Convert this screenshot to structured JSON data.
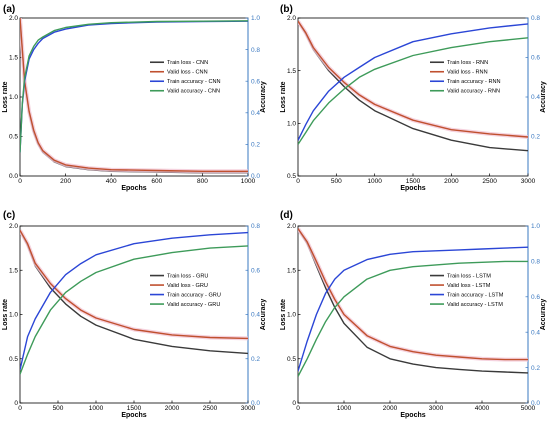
{
  "figure": {
    "colors": {
      "train_loss": "#3a3a3a",
      "valid_loss": "#c0502f",
      "train_acc": "#2b46d6",
      "valid_acc": "#3e9b5a",
      "right_axis": "#3a78c0",
      "shade": "#f3c7d6"
    }
  },
  "chart_data": [
    {
      "type": "line",
      "panel": "(a)",
      "xlabel": "Epochs",
      "ylabel": "Loss rate",
      "y2label": "Accuracy",
      "xlim": [
        0,
        1000
      ],
      "ylim": [
        0,
        2.0
      ],
      "y2lim": [
        0,
        1.0
      ],
      "xticks": [
        "0",
        "200",
        "400",
        "600",
        "800",
        "1000"
      ],
      "yticks": [
        "0.0",
        "0.5",
        "1.0",
        "1.5",
        "2.0"
      ],
      "y2ticks": [
        "0.0",
        "0.2",
        "0.4",
        "0.6",
        "0.8",
        "1.0"
      ],
      "legend_position": "middle-right",
      "series": [
        {
          "name": "Train loss - CNN",
          "axis": "left",
          "color_key": "train_loss",
          "x": [
            0,
            10,
            20,
            40,
            60,
            80,
            100,
            150,
            200,
            300,
            400,
            600,
            800,
            1000
          ],
          "values": [
            2.0,
            1.6,
            1.2,
            0.8,
            0.55,
            0.4,
            0.3,
            0.18,
            0.12,
            0.08,
            0.06,
            0.05,
            0.04,
            0.04
          ]
        },
        {
          "name": "Valid loss - CNN",
          "axis": "left",
          "color_key": "valid_loss",
          "x": [
            0,
            10,
            20,
            40,
            60,
            80,
            100,
            150,
            200,
            300,
            400,
            600,
            800,
            1000
          ],
          "values": [
            2.0,
            1.6,
            1.2,
            0.82,
            0.58,
            0.42,
            0.32,
            0.2,
            0.14,
            0.1,
            0.08,
            0.07,
            0.06,
            0.06
          ]
        },
        {
          "name": "Train accuracy - CNN",
          "axis": "right",
          "color_key": "train_acc",
          "x": [
            0,
            10,
            20,
            40,
            60,
            80,
            100,
            150,
            200,
            300,
            400,
            600,
            800,
            1000
          ],
          "values": [
            0.15,
            0.45,
            0.6,
            0.74,
            0.8,
            0.84,
            0.87,
            0.91,
            0.93,
            0.955,
            0.965,
            0.975,
            0.978,
            0.98
          ]
        },
        {
          "name": "Valid accuracy - CNN",
          "axis": "right",
          "color_key": "valid_acc",
          "x": [
            0,
            10,
            20,
            40,
            60,
            80,
            100,
            150,
            200,
            300,
            400,
            600,
            800,
            1000
          ],
          "values": [
            0.15,
            0.46,
            0.62,
            0.76,
            0.82,
            0.86,
            0.88,
            0.92,
            0.94,
            0.96,
            0.97,
            0.978,
            0.98,
            0.982
          ]
        }
      ]
    },
    {
      "type": "line",
      "panel": "(b)",
      "xlabel": "Epochs",
      "ylabel": "Loss rate",
      "y2label": "Accuracy",
      "xlim": [
        0,
        3000
      ],
      "ylim": [
        0.5,
        2.0
      ],
      "y2lim": [
        0.0,
        0.8
      ],
      "xticks": [
        "0",
        "500",
        "1000",
        "1500",
        "2000",
        "2500",
        "3000"
      ],
      "yticks": [
        "0.5",
        "1.0",
        "1.5",
        "2.0"
      ],
      "y2ticks": [
        "0.2",
        "0.4",
        "0.6",
        "0.8"
      ],
      "legend_position": "middle-right",
      "series": [
        {
          "name": "Train loss - RNN",
          "axis": "left",
          "color_key": "train_loss",
          "x": [
            0,
            100,
            200,
            400,
            600,
            800,
            1000,
            1500,
            2000,
            2500,
            3000
          ],
          "values": [
            1.97,
            1.85,
            1.7,
            1.5,
            1.35,
            1.22,
            1.12,
            0.95,
            0.84,
            0.77,
            0.74
          ]
        },
        {
          "name": "Valid loss - RNN",
          "axis": "left",
          "color_key": "valid_loss",
          "x": [
            0,
            100,
            200,
            400,
            600,
            800,
            1000,
            1500,
            2000,
            2500,
            3000
          ],
          "values": [
            1.97,
            1.86,
            1.72,
            1.53,
            1.39,
            1.27,
            1.18,
            1.03,
            0.94,
            0.9,
            0.87
          ]
        },
        {
          "name": "Train accuracy - RNN",
          "axis": "right",
          "color_key": "train_acc",
          "x": [
            0,
            100,
            200,
            400,
            600,
            800,
            1000,
            1500,
            2000,
            2500,
            3000
          ],
          "values": [
            0.18,
            0.26,
            0.33,
            0.43,
            0.5,
            0.55,
            0.6,
            0.68,
            0.72,
            0.75,
            0.77
          ]
        },
        {
          "name": "Valid accuracy - RNN",
          "axis": "right",
          "color_key": "valid_acc",
          "x": [
            0,
            100,
            200,
            400,
            600,
            800,
            1000,
            1500,
            2000,
            2500,
            3000
          ],
          "values": [
            0.16,
            0.22,
            0.28,
            0.37,
            0.44,
            0.5,
            0.54,
            0.61,
            0.65,
            0.68,
            0.7
          ]
        }
      ]
    },
    {
      "type": "line",
      "panel": "(c)",
      "xlabel": "Epochs",
      "ylabel": "Loss rate",
      "y2label": "Accuracy",
      "xlim": [
        0,
        3000
      ],
      "ylim": [
        0,
        2.0
      ],
      "y2lim": [
        0.0,
        0.8
      ],
      "xticks": [
        "0",
        "500",
        "1000",
        "1500",
        "2000",
        "2500",
        "3000"
      ],
      "yticks": [
        "0",
        "0.5",
        "1.0",
        "1.5",
        "2.0"
      ],
      "y2ticks": [
        "0.0",
        "0.2",
        "0.4",
        "0.6",
        "0.8"
      ],
      "legend_position": "middle-right",
      "series": [
        {
          "name": "Train loss - GRU",
          "axis": "left",
          "color_key": "train_loss",
          "x": [
            0,
            100,
            200,
            400,
            600,
            800,
            1000,
            1500,
            2000,
            2500,
            3000
          ],
          "values": [
            1.95,
            1.78,
            1.55,
            1.3,
            1.12,
            0.98,
            0.88,
            0.72,
            0.64,
            0.59,
            0.56
          ]
        },
        {
          "name": "Valid loss - GRU",
          "axis": "left",
          "color_key": "valid_loss",
          "x": [
            0,
            100,
            200,
            400,
            600,
            800,
            1000,
            1500,
            2000,
            2500,
            3000
          ],
          "values": [
            1.95,
            1.8,
            1.58,
            1.35,
            1.18,
            1.05,
            0.96,
            0.83,
            0.77,
            0.74,
            0.73
          ]
        },
        {
          "name": "Train accuracy - GRU",
          "axis": "right",
          "color_key": "train_acc",
          "x": [
            0,
            100,
            200,
            400,
            600,
            800,
            1000,
            1500,
            2000,
            2500,
            3000
          ],
          "values": [
            0.15,
            0.3,
            0.38,
            0.5,
            0.58,
            0.63,
            0.67,
            0.72,
            0.745,
            0.76,
            0.77
          ]
        },
        {
          "name": "Valid accuracy - GRU",
          "axis": "right",
          "color_key": "valid_acc",
          "x": [
            0,
            100,
            200,
            400,
            600,
            800,
            1000,
            1500,
            2000,
            2500,
            3000
          ],
          "values": [
            0.13,
            0.22,
            0.3,
            0.42,
            0.5,
            0.55,
            0.59,
            0.65,
            0.68,
            0.7,
            0.71
          ]
        }
      ]
    },
    {
      "type": "line",
      "panel": "(d)",
      "xlabel": "Epochs",
      "ylabel": "Loss rate",
      "y2label": "Accuracy",
      "xlim": [
        0,
        5000
      ],
      "ylim": [
        0,
        2.0
      ],
      "y2lim": [
        0.0,
        1.0
      ],
      "xticks": [
        "0",
        "1000",
        "2000",
        "3000",
        "4000",
        "5000"
      ],
      "yticks": [
        "0",
        "0.5",
        "1.0",
        "1.5",
        "2.0"
      ],
      "y2ticks": [
        "0.0",
        "0.2",
        "0.4",
        "0.6",
        "0.8",
        "1.0"
      ],
      "legend_position": "middle-right",
      "series": [
        {
          "name": "Train loss - LSTM",
          "axis": "left",
          "color_key": "train_loss",
          "x": [
            0,
            200,
            400,
            600,
            800,
            1000,
            1500,
            2000,
            2500,
            3000,
            3500,
            4000,
            4500,
            5000
          ],
          "values": [
            1.97,
            1.8,
            1.55,
            1.3,
            1.08,
            0.9,
            0.63,
            0.5,
            0.44,
            0.4,
            0.38,
            0.36,
            0.35,
            0.34
          ]
        },
        {
          "name": "Valid loss - LSTM",
          "axis": "left",
          "color_key": "valid_loss",
          "x": [
            0,
            200,
            400,
            600,
            800,
            1000,
            1500,
            2000,
            2500,
            3000,
            3500,
            4000,
            4500,
            5000
          ],
          "values": [
            1.97,
            1.82,
            1.6,
            1.37,
            1.17,
            1.0,
            0.76,
            0.64,
            0.58,
            0.54,
            0.52,
            0.5,
            0.49,
            0.49
          ]
        },
        {
          "name": "Train accuracy - LSTM",
          "axis": "right",
          "color_key": "train_acc",
          "x": [
            0,
            200,
            400,
            600,
            800,
            1000,
            1500,
            2000,
            2500,
            3000,
            3500,
            4000,
            4500,
            5000
          ],
          "values": [
            0.18,
            0.35,
            0.5,
            0.62,
            0.7,
            0.75,
            0.81,
            0.84,
            0.855,
            0.86,
            0.865,
            0.87,
            0.875,
            0.88
          ]
        },
        {
          "name": "Valid accuracy - LSTM",
          "axis": "right",
          "color_key": "valid_acc",
          "x": [
            0,
            200,
            400,
            600,
            800,
            1000,
            1500,
            2000,
            2500,
            3000,
            3500,
            4000,
            4500,
            5000
          ],
          "values": [
            0.15,
            0.25,
            0.36,
            0.46,
            0.54,
            0.6,
            0.7,
            0.75,
            0.77,
            0.78,
            0.79,
            0.795,
            0.8,
            0.8
          ]
        }
      ]
    }
  ]
}
